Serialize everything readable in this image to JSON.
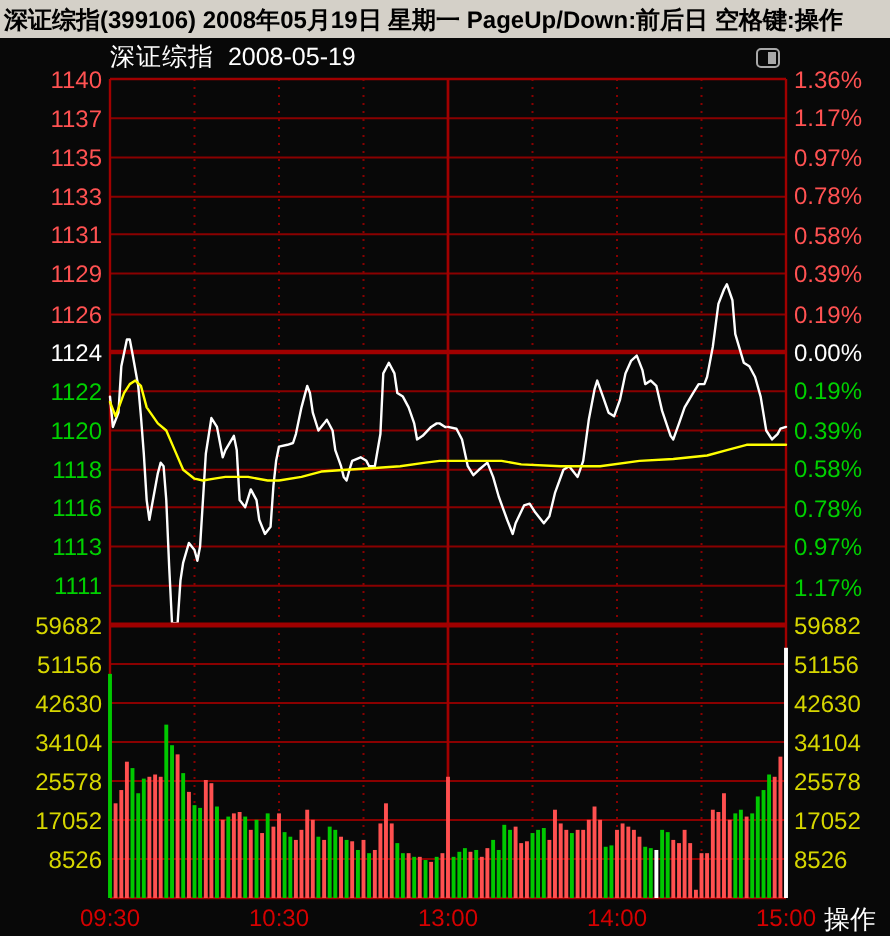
{
  "chart_data": [
    {
      "type": "line",
      "title": "深证综指(399106) 2008年05月19日 星期一 PageUp/Down:前后日 空格键:操作",
      "subtitle": "深证综指  2008-05-19",
      "xlim": [
        9.5,
        11.5
      ],
      "xticks": [
        {
          "value": 9.5,
          "label": null
        },
        {
          "value": 10,
          "label": null
        },
        {
          "value": 10.5,
          "label": null
        },
        {
          "value": 11,
          "label": null
        }
      ],
      "ylim": [
        1109.0,
        1139.6
      ],
      "yticks": [
        {
          "value": 1139.6,
          "label": "1140"
        },
        {
          "value": 1137.4,
          "label": "1137"
        },
        {
          "value": 1135.2,
          "label": "1135"
        },
        {
          "value": 1133.0,
          "label": "1133"
        },
        {
          "value": 1130.9,
          "label": "1131"
        },
        {
          "value": 1128.7,
          "label": "1129"
        },
        {
          "value": 1126.4,
          "label": "1126"
        },
        {
          "value": 1124.3,
          "label": "1124"
        },
        {
          "value": 1122.1,
          "label": "1122"
        },
        {
          "value": 1119.9,
          "label": "1120"
        },
        {
          "value": 1117.7,
          "label": "1118"
        },
        {
          "value": 1115.6,
          "label": "1116"
        },
        {
          "value": 1113.4,
          "label": "1113"
        },
        {
          "value": 1111.2,
          "label": "1111"
        }
      ],
      "tick_labels": "y",
      "grid": true,
      "ref_lines": [
        {
          "axis": "y",
          "value": 1124.3,
          "color": "#a00000"
        }
      ],
      "series": [
        {
          "color": "#ffffff",
          "x": [
            9.5,
            9.517,
            9.55,
            9.567,
            9.6,
            9.617,
            9.633,
            9.667,
            9.683,
            9.7,
            9.717,
            9.733,
            9.75,
            9.783,
            9.8,
            9.817,
            9.833,
            9.85,
            9.867,
            9.9,
            9.917,
            9.933,
            9.967,
            10.0,
            10.017,
            10.033,
            10.05,
            10.067,
            10.1,
            10.133,
            10.167,
            10.183,
            10.233,
            10.25,
            10.267,
            10.3,
            10.333,
            10.367,
            10.383,
            10.417,
            10.45,
            10.467,
            10.483,
            10.5,
            10.55,
            10.583,
            10.6,
            10.633,
            10.667,
            10.683,
            10.7,
            10.733,
            10.767,
            10.783,
            10.817,
            10.833,
            10.867,
            10.883,
            10.9,
            10.917,
            10.933,
            10.983,
            11.017,
            11.033,
            11.067,
            11.1,
            11.117,
            11.15,
            11.183,
            11.2,
            11.233,
            11.267,
            11.3,
            11.317,
            11.35,
            11.4,
            11.433,
            11.45,
            11.483,
            11.5
          ],
          "values": [
            1121.8,
            1120.1,
            1120.9,
            1123.5,
            1125.0,
            1125.0,
            1124.2,
            1122.4,
            1120.7,
            1118.6,
            1116.0,
            1114.9,
            1115.8,
            1117.5,
            1118.1,
            1117.9,
            1116.0,
            1112.3,
            1109.1,
            1109.1,
            1111.5,
            1112.5,
            1113.6,
            1113.2,
            1112.6,
            1113.4,
            1116.0,
            1118.6,
            1120.6,
            1120.1,
            1118.4,
            1118.8,
            1119.6,
            1118.8,
            1116.0,
            1115.6,
            1116.6,
            1116.0,
            1114.9,
            1114.1,
            1114.5,
            1116.8,
            1118.2,
            1119.0,
            1119.1,
            1119.2,
            1119.7,
            1121.2,
            1122.4,
            1122.0,
            1120.9,
            1119.9,
            1120.3,
            1120.5,
            1119.9,
            1118.8,
            1117.9,
            1117.3,
            1117.1,
            1117.7,
            1118.2,
            1118.4,
            1118.2,
            1117.9,
            1117.9,
            1119.7,
            1123.1,
            1123.7,
            1123.1,
            1122.0,
            1121.8,
            1121.2,
            1120.3,
            1119.4,
            1119.6,
            1120.1,
            1120.3,
            1120.3,
            1120.1,
            1120.1
          ]
        },
        {
          "color": "#ffff00",
          "x": [
            9.5,
            9.533,
            9.583,
            9.617,
            9.65,
            9.683,
            9.717,
            9.783,
            9.833,
            9.883,
            9.933,
            10.0,
            10.05,
            10.117,
            10.183,
            10.317,
            10.433,
            10.5,
            10.633,
            10.75,
            10.9,
            11.067,
            11.217,
            11.367,
            11.45,
            11.5
          ],
          "values": [
            1121.5,
            1120.7,
            1122.0,
            1122.5,
            1122.7,
            1122.4,
            1121.2,
            1120.3,
            1119.9,
            1118.8,
            1117.7,
            1117.2,
            1117.1,
            1117.2,
            1117.3,
            1117.3,
            1117.1,
            1117.1,
            1117.3,
            1117.6,
            1117.7,
            1117.8,
            1117.9,
            1118.1,
            1118.2,
            1118.2
          ]
        }
      ]
    },
    {
      "type": "line",
      "xlim": [
        13,
        15
      ],
      "xticks": [
        {
          "value": 13,
          "label": null
        },
        {
          "value": 13.5,
          "label": null
        },
        {
          "value": 14,
          "label": null
        },
        {
          "value": 14.5,
          "label": null
        },
        {
          "value": 15,
          "label": null
        }
      ],
      "ylim": [
        1109.0,
        1139.6
      ],
      "yticks": [
        {
          "value": 1139.6,
          "label": null
        },
        {
          "value": 1137.4,
          "label": null
        },
        {
          "value": 1135.2,
          "label": null
        },
        {
          "value": 1133.0,
          "label": null
        },
        {
          "value": 1130.9,
          "label": null
        },
        {
          "value": 1128.7,
          "label": null
        },
        {
          "value": 1126.4,
          "label": null
        },
        {
          "value": 1124.3,
          "label": null
        },
        {
          "value": 1122.1,
          "label": null
        },
        {
          "value": 1119.9,
          "label": null
        },
        {
          "value": 1117.7,
          "label": null
        },
        {
          "value": 1115.6,
          "label": null
        },
        {
          "value": 1113.4,
          "label": null
        },
        {
          "value": 1111.2,
          "label": null
        }
      ],
      "y2lim": [
        -1.36,
        1.36
      ],
      "y2ticks": [
        {
          "value": 1.36,
          "label": "1.36%"
        },
        {
          "value": 1.17,
          "label": "1.17%"
        },
        {
          "value": 0.97,
          "label": "0.97%"
        },
        {
          "value": 0.78,
          "label": "0.78%"
        },
        {
          "value": 0.58,
          "label": "0.58%"
        },
        {
          "value": 0.39,
          "label": "0.39%"
        },
        {
          "value": 0.19,
          "label": "0.19%"
        },
        {
          "value": 0,
          "label": "0.00%"
        },
        {
          "value": -0.19,
          "label": "0.19%"
        },
        {
          "value": -0.39,
          "label": "0.39%"
        },
        {
          "value": -0.58,
          "label": "0.58%"
        },
        {
          "value": -0.78,
          "label": "0.78%"
        },
        {
          "value": -0.97,
          "label": "0.97%"
        },
        {
          "value": -1.17,
          "label": "1.17%"
        }
      ],
      "tick_labels": false,
      "grid": true,
      "ref_lines": [
        {
          "axis": "y",
          "value": 1124.3,
          "color": "#a00000"
        }
      ],
      "series": [
        {
          "color": "#ffffff",
          "x": [
            13.0,
            13.05,
            13.083,
            13.117,
            13.15,
            13.183,
            13.233,
            13.267,
            13.3,
            13.35,
            13.383,
            13.4,
            13.45,
            13.483,
            13.517,
            13.567,
            13.6,
            13.633,
            13.683,
            13.717,
            13.767,
            13.8,
            13.833,
            13.867,
            13.883,
            13.917,
            13.95,
            13.983,
            14.017,
            14.05,
            14.083,
            14.117,
            14.15,
            14.167,
            14.2,
            14.233,
            14.267,
            14.317,
            14.333,
            14.367,
            14.4,
            14.45,
            14.483,
            14.517,
            14.533,
            14.567,
            14.6,
            14.633,
            14.65,
            14.683,
            14.7,
            14.75,
            14.783,
            14.817,
            14.85,
            14.883,
            14.917,
            14.95,
            14.967,
            15.0
          ],
          "values": [
            1120.1,
            1120.0,
            1119.4,
            1117.9,
            1117.4,
            1117.7,
            1118.1,
            1117.3,
            1116.2,
            1114.9,
            1114.1,
            1114.7,
            1115.7,
            1115.8,
            1115.3,
            1114.7,
            1115.1,
            1116.4,
            1117.7,
            1117.9,
            1117.3,
            1118.2,
            1120.5,
            1122.2,
            1122.7,
            1121.8,
            1120.9,
            1120.7,
            1121.6,
            1123.1,
            1123.8,
            1124.1,
            1123.3,
            1122.5,
            1122.7,
            1122.4,
            1121.0,
            1119.6,
            1119.4,
            1120.3,
            1121.2,
            1122.0,
            1122.5,
            1122.5,
            1122.9,
            1124.6,
            1127.0,
            1127.8,
            1128.1,
            1127.2,
            1125.3,
            1123.7,
            1123.5,
            1122.9,
            1121.8,
            1119.9,
            1119.4,
            1119.7,
            1120.0,
            1120.1
          ]
        },
        {
          "color": "#ffff00",
          "x": [
            13.0,
            13.317,
            13.433,
            13.667,
            13.9,
            14.133,
            14.333,
            14.533,
            14.65,
            14.767,
            14.883,
            15.0
          ],
          "values": [
            1118.2,
            1118.2,
            1118.0,
            1117.9,
            1117.9,
            1118.2,
            1118.3,
            1118.5,
            1118.8,
            1119.1,
            1119.1,
            1119.1
          ]
        }
      ]
    },
    {
      "type": "bar",
      "xlim": [
        9.5,
        11.5
      ],
      "xticks": [
        {
          "value": 9.5,
          "label": "09:30"
        },
        {
          "value": 10,
          "label": null
        },
        {
          "value": 10.5,
          "label": "10:30"
        },
        {
          "value": 11,
          "label": null
        }
      ],
      "ylim": [
        0,
        59682
      ],
      "yticks": [
        8526,
        17052,
        25578,
        34104,
        42630,
        51156,
        59682
      ],
      "grid": true,
      "x": [
        9.5,
        9.533,
        9.567,
        9.6,
        9.633,
        9.667,
        9.7,
        9.733,
        9.767,
        9.8,
        9.833,
        9.867,
        9.9,
        9.933,
        9.967,
        10.0,
        10.033,
        10.067,
        10.1,
        10.133,
        10.167,
        10.2,
        10.233,
        10.267,
        10.3,
        10.333,
        10.367,
        10.4,
        10.433,
        10.467,
        10.5,
        10.533,
        10.567,
        10.6,
        10.633,
        10.667,
        10.7,
        10.733,
        10.767,
        10.8,
        10.833,
        10.867,
        10.9,
        10.933,
        10.967,
        11.0,
        11.033,
        11.067,
        11.1,
        11.133,
        11.167,
        11.2,
        11.233,
        11.267,
        11.3,
        11.333,
        11.367,
        11.4,
        11.433,
        11.467
      ],
      "values": [
        49000,
        20700,
        23600,
        29800,
        28400,
        22900,
        26100,
        26500,
        27000,
        26500,
        37900,
        33400,
        31400,
        27300,
        23200,
        20300,
        19700,
        25800,
        25100,
        20000,
        17100,
        17800,
        18500,
        18800,
        17800,
        14900,
        17100,
        14200,
        18500,
        15600,
        18500,
        14400,
        13400,
        12700,
        14900,
        19300,
        17100,
        13400,
        12700,
        15600,
        14900,
        13400,
        12700,
        12400,
        10500,
        12700,
        9800,
        10500,
        16300,
        20700,
        16300,
        12000,
        9800,
        9800,
        9000,
        9000,
        8300,
        7900,
        9000,
        9800
      ],
      "colors": [
        "#00c800",
        "#ff5050",
        "#ff5050",
        "#ff5050",
        "#00c800",
        "#00c800",
        "#00c800",
        "#ff5050",
        "#ff5050",
        "#ff5050",
        "#00c800",
        "#00c800",
        "#ff5050",
        "#00c800",
        "#ff5050",
        "#00c800",
        "#00c800",
        "#ff5050",
        "#ff5050",
        "#00c800",
        "#ff5050",
        "#00c800",
        "#ff5050",
        "#ff5050",
        "#00c800",
        "#ff5050",
        "#00c800",
        "#ff5050",
        "#00c800",
        "#ff5050",
        "#ff5050",
        "#00c800",
        "#00c800",
        "#ff5050",
        "#ff5050",
        "#ff5050",
        "#ff5050",
        "#00c800",
        "#ff5050",
        "#00c800",
        "#00c800",
        "#ff5050",
        "#00c800",
        "#ff5050",
        "#00c800",
        "#ff5050",
        "#00c800",
        "#ff5050",
        "#ff5050",
        "#ff5050",
        "#ff5050",
        "#00c800",
        "#00c800",
        "#ff5050",
        "#00c800",
        "#ff5050",
        "#00c800",
        "#ff5050",
        "#00c800",
        "#ff5050"
      ]
    },
    {
      "type": "bar",
      "annotations": [
        "操作"
      ],
      "xlim": [
        13,
        15
      ],
      "xticks": [
        {
          "value": 13,
          "label": "13:00"
        },
        {
          "value": 13.5,
          "label": null
        },
        {
          "value": 14,
          "label": "14:00"
        },
        {
          "value": 14.5,
          "label": null
        },
        {
          "value": 15,
          "label": "15:00"
        }
      ],
      "ylim": [
        0,
        59682
      ],
      "yticks": [
        8526,
        17052,
        25578,
        34104,
        42630,
        51156,
        59682
      ],
      "grid": true,
      "x": [
        13.0,
        13.033,
        13.067,
        13.1,
        13.133,
        13.167,
        13.2,
        13.233,
        13.267,
        13.3,
        13.333,
        13.367,
        13.4,
        13.433,
        13.467,
        13.5,
        13.533,
        13.567,
        13.6,
        13.633,
        13.667,
        13.7,
        13.733,
        13.767,
        13.8,
        13.833,
        13.867,
        13.9,
        13.933,
        13.967,
        14.0,
        14.033,
        14.067,
        14.1,
        14.133,
        14.167,
        14.2,
        14.233,
        14.267,
        14.3,
        14.333,
        14.367,
        14.4,
        14.433,
        14.467,
        14.5,
        14.533,
        14.567,
        14.6,
        14.633,
        14.667,
        14.7,
        14.733,
        14.767,
        14.8,
        14.833,
        14.867,
        14.9,
        14.933,
        14.967,
        15.0
      ],
      "values": [
        26500,
        9000,
        10100,
        10900,
        10100,
        10500,
        9000,
        10900,
        12700,
        10500,
        16000,
        14900,
        15600,
        12000,
        12400,
        14200,
        14900,
        15300,
        12700,
        19300,
        16300,
        14900,
        14200,
        14900,
        14900,
        17100,
        20000,
        17100,
        11200,
        11500,
        14900,
        16300,
        15600,
        14900,
        13400,
        11200,
        10900,
        10500,
        14900,
        14400,
        12700,
        12000,
        14900,
        12000,
        1800,
        9800,
        9800,
        19300,
        18800,
        22900,
        17100,
        18500,
        19300,
        17800,
        18500,
        22200,
        23600,
        27000,
        26500,
        30900,
        54700
      ],
      "colors": [
        "#ff5050",
        "#00c800",
        "#00c800",
        "#00c800",
        "#ff5050",
        "#00c800",
        "#ff5050",
        "#ff5050",
        "#00c800",
        "#00c800",
        "#00c800",
        "#00c800",
        "#ff5050",
        "#ff5050",
        "#ff5050",
        "#00c800",
        "#00c800",
        "#00c800",
        "#ff5050",
        "#ff5050",
        "#ff5050",
        "#ff5050",
        "#00c800",
        "#ff5050",
        "#ff5050",
        "#ff5050",
        "#ff5050",
        "#ff5050",
        "#00c800",
        "#00c800",
        "#ff5050",
        "#ff5050",
        "#ff5050",
        "#ff5050",
        "#ff5050",
        "#00c800",
        "#00c800",
        "#ffffff",
        "#00c800",
        "#00c800",
        "#ff5050",
        "#ff5050",
        "#ff5050",
        "#ff5050",
        "#ff5050",
        "#ff5050",
        "#ff5050",
        "#ff5050",
        "#ff5050",
        "#ff5050",
        "#ff5050",
        "#00c800",
        "#00c800",
        "#ff5050",
        "#00c800",
        "#00c800",
        "#00c800",
        "#00c800",
        "#ff5050",
        "#ff5050",
        "#ffffff"
      ]
    }
  ]
}
